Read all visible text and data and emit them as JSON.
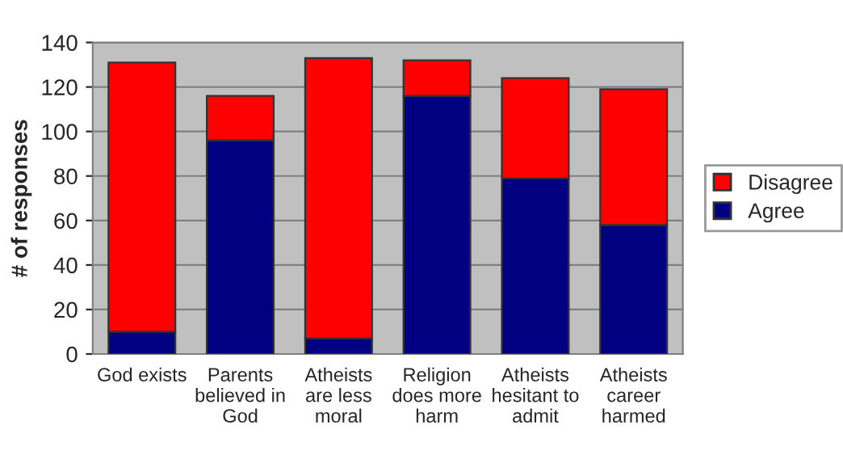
{
  "chart_data": {
    "type": "bar",
    "stacked": true,
    "ylabel": "# of responses",
    "categories": [
      "God exists",
      "Parents\nbelieved in\nGod",
      "Atheists\nare less\nmoral",
      "Religion\ndoes more\nharm",
      "Atheists\nhesitant to\nadmit",
      "Atheists\ncareer\nharmed"
    ],
    "series": [
      {
        "name": "Agree",
        "color": "#000080",
        "values": [
          10,
          96,
          7,
          116,
          79,
          58
        ]
      },
      {
        "name": "Disagree",
        "color": "#ff0000",
        "values": [
          121,
          20,
          126,
          16,
          45,
          61
        ]
      }
    ],
    "ylim": [
      0,
      140
    ],
    "yticks": [
      0,
      20,
      40,
      60,
      80,
      100,
      120,
      140
    ],
    "grid": "y",
    "legend": "right"
  }
}
